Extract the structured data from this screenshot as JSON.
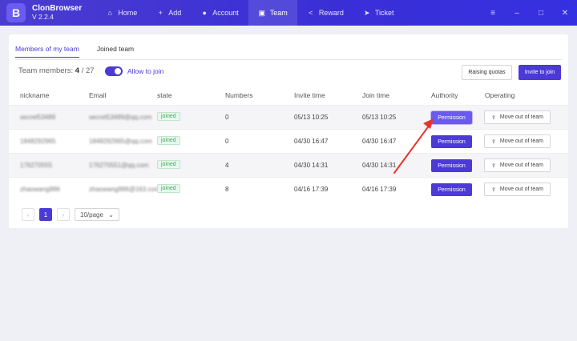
{
  "app": {
    "name": "ClonBrowser",
    "version": "V 2.2.4",
    "logo_letter": "B"
  },
  "nav": [
    {
      "label": "Home",
      "icon": "home-icon",
      "glyph": "⌂",
      "active": false
    },
    {
      "label": "Add",
      "icon": "add-icon",
      "glyph": "+",
      "active": false
    },
    {
      "label": "Account",
      "icon": "account-icon",
      "glyph": "●",
      "active": false
    },
    {
      "label": "Team",
      "icon": "team-icon",
      "glyph": "▣",
      "active": true
    },
    {
      "label": "Reward",
      "icon": "share-icon",
      "glyph": "<",
      "active": false
    },
    {
      "label": "Ticket",
      "icon": "send-icon",
      "glyph": "➤",
      "active": false
    }
  ],
  "window": {
    "menu": "≡",
    "minimize": "–",
    "maximize": "□",
    "close": "✕"
  },
  "tabs": [
    "Members of my team",
    "Joined team"
  ],
  "summary": {
    "label": "Team members:",
    "count": "4",
    "total": "/ 27",
    "allow_label": "Allow to join"
  },
  "actions": {
    "quota": "Raising quotas",
    "invite": "Invite to join"
  },
  "table": {
    "columns": [
      "nickname",
      "Email",
      "state",
      "Numbers",
      "Invite time",
      "Join time",
      "Authority",
      "Operating"
    ],
    "rows": [
      {
        "nickname": "secret53489",
        "email": "secret53489@qq.com",
        "state": "joined",
        "numbers": "0",
        "invite": "05/13 10:25",
        "join": "05/13 10:25",
        "authority": "Permission",
        "operate": "Move out of team"
      },
      {
        "nickname": "1848292965",
        "email": "1848292965@qq.com",
        "state": "joined",
        "numbers": "0",
        "invite": "04/30 16:47",
        "join": "04/30 16:47",
        "authority": "Permission",
        "operate": "Move out of team"
      },
      {
        "nickname": "176270555",
        "email": "176270551@qq.com",
        "state": "joined",
        "numbers": "4",
        "invite": "04/30 14:31",
        "join": "04/30 14:31",
        "authority": "Permission",
        "operate": "Move out of team"
      },
      {
        "nickname": "zhaowang996",
        "email": "zhaowang996@163.com",
        "state": "joined",
        "numbers": "8",
        "invite": "04/16 17:39",
        "join": "04/16 17:39",
        "authority": "Permission",
        "operate": "Move out of team"
      }
    ]
  },
  "pagination": {
    "prev": "‹",
    "current": "1",
    "next": "›",
    "page_size": "10/page",
    "dropdown": "⌄"
  },
  "colors": {
    "accent": "#4b39d8",
    "annotation": "#e8332b"
  }
}
